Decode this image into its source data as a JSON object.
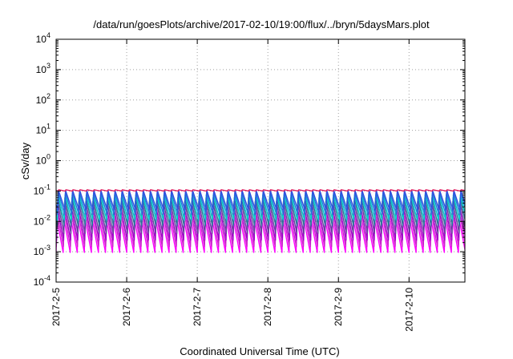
{
  "chart_data": {
    "type": "line",
    "title": "/data/run/goesPlots/archive/2017-02-10/19:00/flux/../bryn/5daysMars.plot",
    "xlabel": "Coordinated Universal Time (UTC)",
    "ylabel": "cSv/day",
    "y_scale": "log",
    "y_exponent_range": [
      -4,
      4
    ],
    "y_tick_exponents": [
      -4,
      -3,
      -2,
      -1,
      0,
      1,
      2,
      3,
      4
    ],
    "y_tick_base": "10",
    "x_range": [
      "2017-02-05",
      "2017-02-10 19:00"
    ],
    "x_ticks": [
      {
        "date": "2017-02-05",
        "label": "2017-2-5"
      },
      {
        "date": "2017-02-06",
        "label": "2017-2-6"
      },
      {
        "date": "2017-02-07",
        "label": "2017-2-7"
      },
      {
        "date": "2017-02-08",
        "label": "2017-2-8"
      },
      {
        "date": "2017-02-09",
        "label": "2017-2-9"
      },
      {
        "date": "2017-02-10",
        "label": "2017-2-10"
      }
    ],
    "grid": true,
    "cycle_period_hours": 2.4,
    "series": [
      {
        "color": "#ff00ff",
        "peak": 0.012,
        "trough": 0.00095
      },
      {
        "color": "#cc22cc",
        "peak": 0.02,
        "trough": 0.0015
      },
      {
        "color": "#a000c8",
        "peak": 0.03,
        "trough": 0.0024
      },
      {
        "color": "#6a3fa0",
        "peak": 0.045,
        "trough": 0.004
      },
      {
        "color": "#2a7a9a",
        "peak": 0.06,
        "trough": 0.007
      },
      {
        "color": "#00cccc",
        "peak": 0.075,
        "trough": 0.011
      },
      {
        "color": "#2080d8",
        "peak": 0.09,
        "trough": 0.017
      },
      {
        "color": "#3050e0",
        "peak": 0.105,
        "trough": 0.024
      },
      {
        "color": "#e02060",
        "peak": 0.11,
        "trough": 0.1
      }
    ]
  }
}
